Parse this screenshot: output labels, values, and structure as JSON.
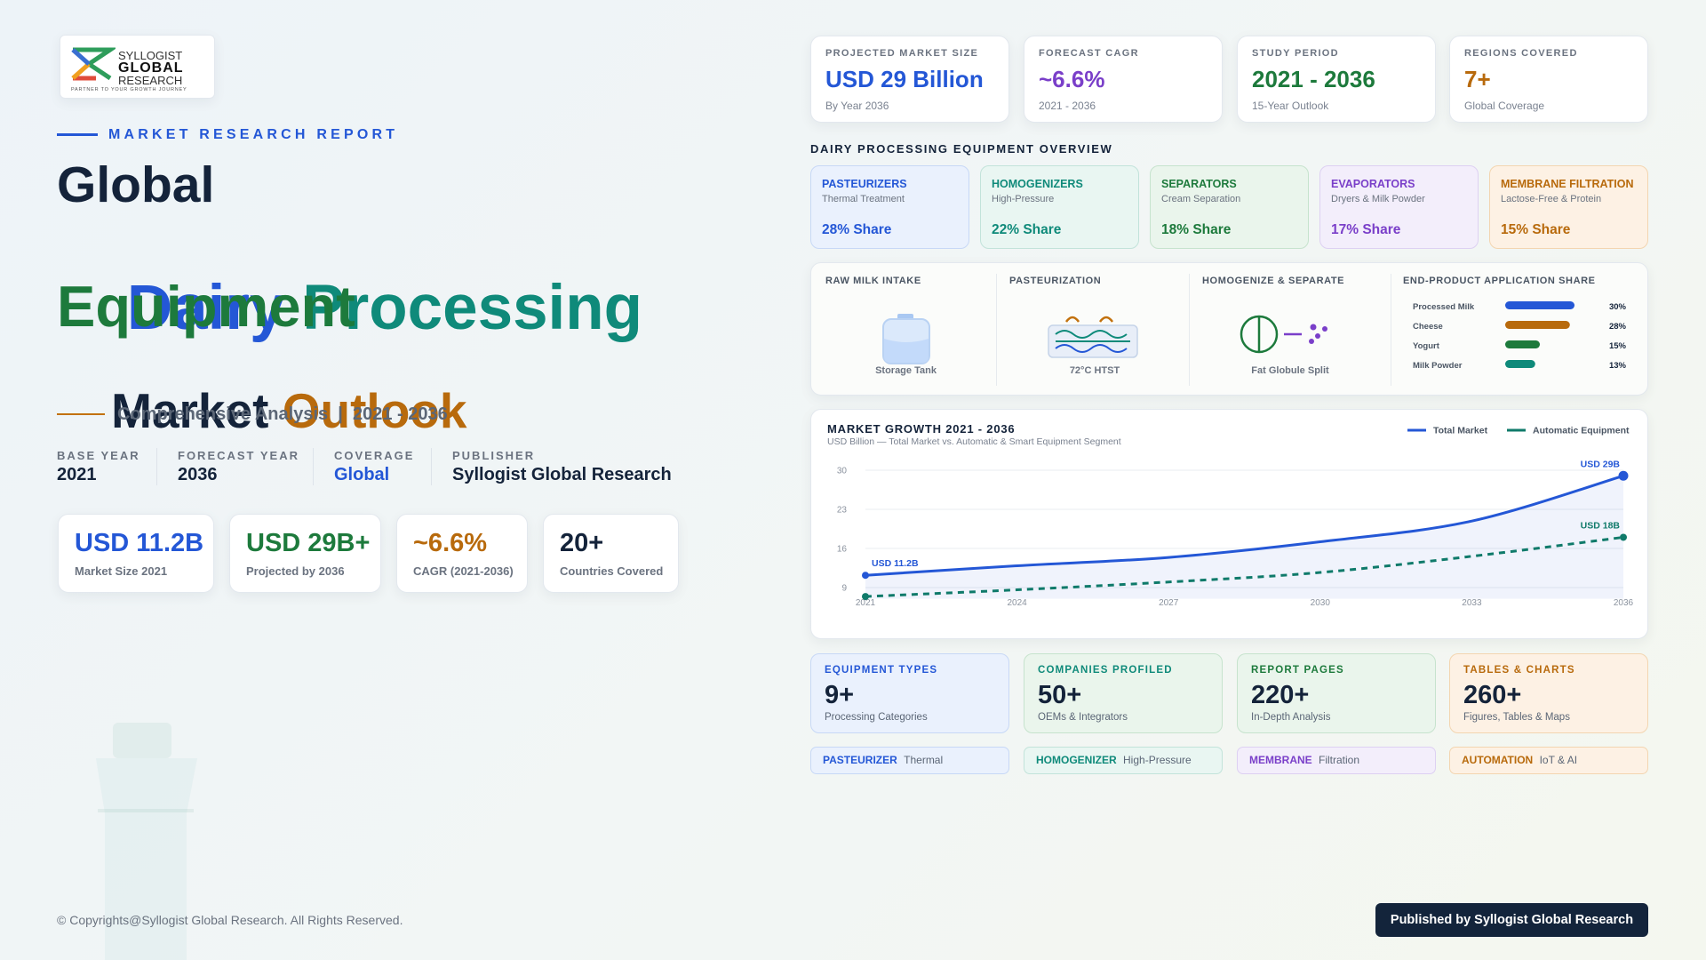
{
  "logo": {
    "line1": "SYLLOGIST",
    "line2": "GLOBAL",
    "line3": "RESEARCH",
    "tagline": "PARTNER TO YOUR GROWTH JOURNEY"
  },
  "hero": {
    "eyebrow": "MARKET RESEARCH REPORT",
    "title": [
      "Global",
      "Dairy",
      "Processing",
      "Equipment",
      "Market",
      "Outlook"
    ],
    "subtitle": "Comprehensive Analysis  |  2021 - 2036",
    "meta": [
      {
        "label": "BASE YEAR",
        "value": "2021"
      },
      {
        "label": "FORECAST YEAR",
        "value": "2036"
      },
      {
        "label": "COVERAGE",
        "value": "Global"
      },
      {
        "label": "PUBLISHER",
        "value": "Syllogist Global Research"
      }
    ],
    "stats": [
      {
        "value": "USD 11.2B",
        "label": "Market Size 2021"
      },
      {
        "value": "USD 29B+",
        "label": "Projected by 2036"
      },
      {
        "value": "~6.6%",
        "label": "CAGR (2021-2036)"
      },
      {
        "value": "20+",
        "label": "Countries Covered"
      }
    ]
  },
  "kpis": [
    {
      "label": "PROJECTED MARKET SIZE",
      "value": "USD 29 Billion",
      "sub": "By Year 2036"
    },
    {
      "label": "FORECAST CAGR",
      "value": "~6.6%",
      "sub": "2021 - 2036"
    },
    {
      "label": "STUDY PERIOD",
      "value": "2021 - 2036",
      "sub": "15-Year Outlook"
    },
    {
      "label": "REGIONS COVERED",
      "value": "7+",
      "sub": "Global Coverage"
    }
  ],
  "overview": {
    "title": "DAIRY PROCESSING EQUIPMENT OVERVIEW",
    "equipment": [
      {
        "name": "PASTEURIZERS",
        "sub": "Thermal Treatment",
        "share": "28% Share"
      },
      {
        "name": "HOMOGENIZERS",
        "sub": "High-Pressure",
        "share": "22% Share"
      },
      {
        "name": "SEPARATORS",
        "sub": "Cream Separation",
        "share": "18% Share"
      },
      {
        "name": "EVAPORATORS",
        "sub": "Dryers & Milk Powder",
        "share": "17% Share"
      },
      {
        "name": "MEMBRANE FILTRATION",
        "sub": "Lactose-Free & Protein",
        "share": "15% Share"
      }
    ]
  },
  "process": {
    "steps": [
      {
        "title": "RAW MILK INTAKE",
        "caption": "Storage Tank"
      },
      {
        "title": "PASTEURIZATION",
        "caption": "72°C HTST"
      },
      {
        "title": "HOMOGENIZE & SEPARATE",
        "caption": "Fat Globule Split"
      }
    ],
    "application_share": {
      "type": "bar",
      "title": "END-PRODUCT APPLICATION SHARE",
      "categories": [
        "Processed Milk",
        "Cheese",
        "Yogurt",
        "Milk Powder"
      ],
      "values": [
        30,
        28,
        15,
        13
      ],
      "value_labels": [
        "30%",
        "28%",
        "15%",
        "13%"
      ],
      "colors": [
        "#2457d6",
        "#b86a0c",
        "#1d7a3c",
        "#0f8a7a"
      ]
    }
  },
  "growth_chart": {
    "type": "line",
    "title": "MARKET GROWTH 2021 - 2036",
    "subtitle": "USD Billion — Total Market vs. Automatic & Smart Equipment Segment",
    "x": [
      2021,
      2024,
      2027,
      2030,
      2033,
      2036
    ],
    "xlim": [
      2021,
      2036
    ],
    "xticks": [
      2021,
      2024,
      2027,
      2030,
      2033,
      2036
    ],
    "ylim": [
      7,
      30
    ],
    "yticks": [
      30,
      23,
      16,
      9
    ],
    "grid": true,
    "series": [
      {
        "name": "Total Market",
        "color": "#2457d6",
        "values": [
          11.2,
          12.9,
          14.4,
          17.2,
          20.9,
          29
        ],
        "value_labels": [
          "USD 11.2B",
          null,
          null,
          null,
          null,
          "USD 29B"
        ]
      },
      {
        "name": "Automatic Equipment",
        "color": "#0f7a6a",
        "values": [
          7.4,
          8.6,
          10,
          11.7,
          14.6,
          18
        ],
        "value_labels": [
          null,
          null,
          null,
          null,
          null,
          "USD 18B"
        ]
      }
    ]
  },
  "report_stats": [
    {
      "label": "EQUIPMENT TYPES",
      "value": "9+",
      "sub": "Processing Categories"
    },
    {
      "label": "COMPANIES PROFILED",
      "value": "50+",
      "sub": "OEMs & Integrators"
    },
    {
      "label": "REPORT PAGES",
      "value": "220+",
      "sub": "In-Depth Analysis"
    },
    {
      "label": "TABLES & CHARTS",
      "value": "260+",
      "sub": "Figures, Tables & Maps"
    }
  ],
  "tags": [
    {
      "name": "PASTEURIZER",
      "desc": "Thermal"
    },
    {
      "name": "HOMOGENIZER",
      "desc": "High-Pressure"
    },
    {
      "name": "MEMBRANE",
      "desc": "Filtration"
    },
    {
      "name": "AUTOMATION",
      "desc": "IoT & AI"
    }
  ],
  "footer": {
    "copyright": "© Copyrights@Syllogist Global Research. All Rights Reserved.",
    "button": "Published by Syllogist Global Research"
  }
}
